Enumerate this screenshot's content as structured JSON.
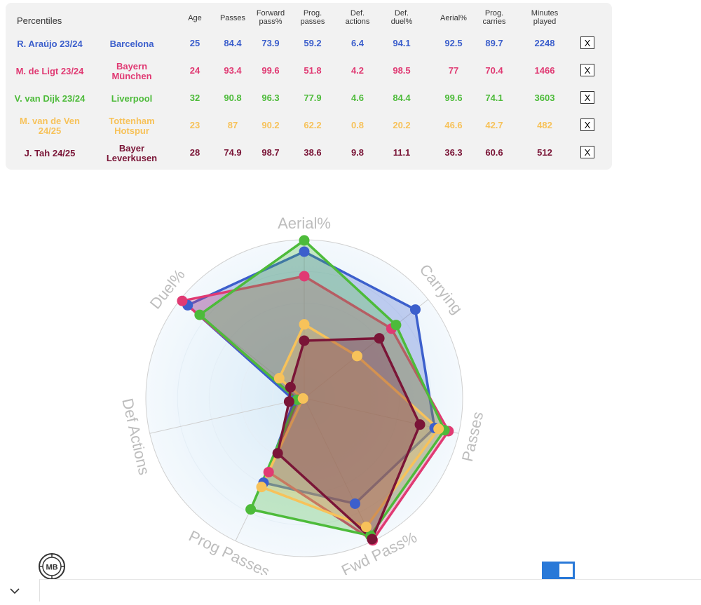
{
  "table": {
    "headers": [
      "Percentiles",
      "",
      "Age",
      "Passes",
      "Forward pass%",
      "Prog. passes",
      "Def. actions",
      "Def. duel%",
      "Aerial%",
      "Prog. carries",
      "Minutes played"
    ],
    "rows": [
      {
        "player": "R. Araújo 23/24",
        "team": "Barcelona",
        "age": 25,
        "passes": 84.4,
        "fwd": 73.9,
        "prog": 59.2,
        "defact": 6.4,
        "duel": 94.1,
        "aerial": 92.5,
        "carries": 89.7,
        "minutes": 2248,
        "color": "#3c5fcc",
        "close": "X"
      },
      {
        "player": "M. de Ligt 23/24",
        "team": "Bayern München",
        "age": 24,
        "passes": 93.4,
        "fwd": 99.6,
        "prog": 51.8,
        "defact": 4.2,
        "duel": 98.5,
        "aerial": 77.0,
        "carries": 70.4,
        "minutes": 1466,
        "color": "#e03a73",
        "close": "X"
      },
      {
        "player": "V. van Dijk 23/24",
        "team": "Liverpool",
        "age": 32,
        "passes": 90.8,
        "fwd": 96.3,
        "prog": 77.9,
        "defact": 4.6,
        "duel": 84.4,
        "aerial": 99.6,
        "carries": 74.1,
        "minutes": 3603,
        "color": "#4dbb3a",
        "close": "X"
      },
      {
        "player": "M. van de Ven 24/25",
        "team": "Tottenham Hotspur",
        "age": 23,
        "passes": 87.0,
        "fwd": 90.2,
        "prog": 62.2,
        "defact": 0.8,
        "duel": 20.2,
        "aerial": 46.6,
        "carries": 42.7,
        "minutes": 482,
        "color": "#f7c25a",
        "close": "X"
      },
      {
        "player": "J. Tah 24/25",
        "team": "Bayer Leverkusen",
        "age": 28,
        "passes": 74.9,
        "fwd": 98.7,
        "prog": 38.6,
        "defact": 9.8,
        "duel": 11.1,
        "aerial": 36.3,
        "carries": 60.6,
        "minutes": 512,
        "color": "#7a1537",
        "close": "X"
      }
    ]
  },
  "chart_data": {
    "type": "radar",
    "axes": [
      "Aerial%",
      "Carrying",
      "Passes",
      "Fwd Pass%",
      "Prog Passes",
      "Def Actions",
      "Duel%"
    ],
    "range": [
      0,
      100
    ],
    "series": [
      {
        "name": "R. Araújo 23/24",
        "color": "#3c5fcc",
        "values": [
          92.5,
          89.7,
          84.4,
          73.9,
          59.2,
          6.4,
          94.1
        ]
      },
      {
        "name": "M. de Ligt 23/24",
        "color": "#e03a73",
        "values": [
          77.0,
          70.4,
          93.4,
          99.6,
          51.8,
          4.2,
          98.5
        ]
      },
      {
        "name": "V. van Dijk 23/24",
        "color": "#4dbb3a",
        "values": [
          99.6,
          74.1,
          90.8,
          96.3,
          77.9,
          4.6,
          84.4
        ]
      },
      {
        "name": "M. van de Ven 24/25",
        "color": "#f7c25a",
        "values": [
          46.6,
          42.7,
          87.0,
          90.2,
          62.2,
          0.8,
          20.2
        ]
      },
      {
        "name": "J. Tah 24/25",
        "color": "#7a1537",
        "values": [
          36.3,
          60.6,
          74.9,
          98.7,
          38.6,
          9.8,
          11.1
        ]
      }
    ],
    "grid": true
  },
  "logo": {
    "text": "MB"
  },
  "toggle": {
    "on": true,
    "color": "#2979d8"
  },
  "collapse": {
    "icon": "chevron-down-icon"
  }
}
